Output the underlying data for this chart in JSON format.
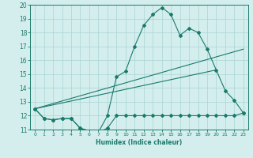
{
  "line1_x": [
    0,
    1,
    2,
    3,
    4,
    5,
    6,
    7,
    8,
    9,
    10,
    11,
    12,
    13,
    14,
    15,
    16,
    17,
    18,
    19,
    20,
    21,
    22,
    23
  ],
  "line1_y": [
    12.5,
    11.8,
    11.7,
    11.8,
    11.8,
    11.1,
    10.9,
    10.8,
    11.1,
    12.0,
    12.0,
    12.0,
    12.0,
    12.0,
    12.0,
    12.0,
    12.0,
    12.0,
    12.0,
    12.0,
    12.0,
    12.0,
    12.0,
    12.2
  ],
  "line2_x": [
    0,
    1,
    2,
    3,
    4,
    5,
    6,
    7,
    8,
    9,
    10,
    11,
    12,
    13,
    14,
    15,
    16,
    17,
    18,
    19,
    20,
    21,
    22,
    23
  ],
  "line2_y": [
    12.5,
    11.8,
    11.7,
    11.8,
    11.8,
    11.1,
    10.9,
    10.8,
    12.0,
    14.8,
    15.2,
    17.0,
    18.5,
    19.3,
    19.8,
    19.3,
    17.8,
    18.3,
    18.0,
    16.8,
    15.3,
    13.8,
    13.1,
    12.2
  ],
  "line3_x": [
    0,
    23
  ],
  "line3_y": [
    12.5,
    16.8
  ],
  "line4_x": [
    0,
    20
  ],
  "line4_y": [
    12.5,
    15.3
  ],
  "xlim": [
    -0.5,
    23.5
  ],
  "ylim": [
    11,
    20
  ],
  "xticks": [
    0,
    1,
    2,
    3,
    4,
    5,
    6,
    7,
    8,
    9,
    10,
    11,
    12,
    13,
    14,
    15,
    16,
    17,
    18,
    19,
    20,
    21,
    22,
    23
  ],
  "yticks": [
    11,
    12,
    13,
    14,
    15,
    16,
    17,
    18,
    19,
    20
  ],
  "xlabel": "Humidex (Indice chaleur)",
  "line_color": "#1a7a6a",
  "bg_color": "#d4eeee",
  "grid_color": "#aad4d4"
}
